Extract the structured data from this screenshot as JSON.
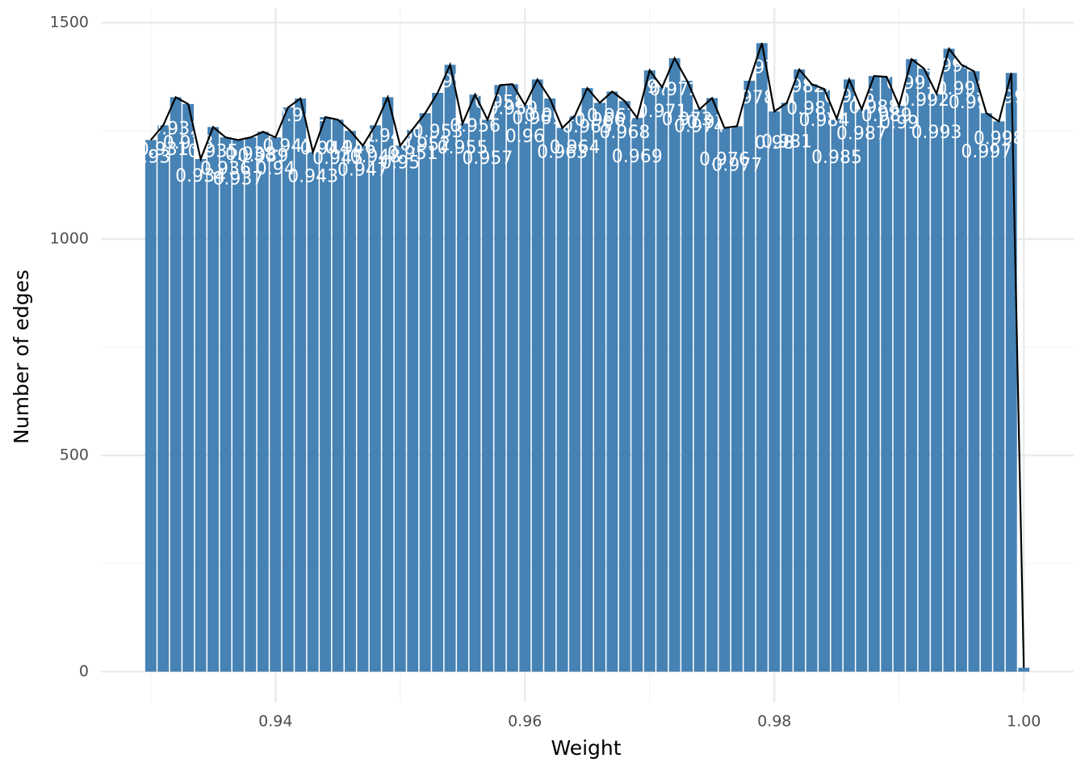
{
  "chart_data": {
    "type": "bar",
    "x_label": "Weight",
    "y_label": "Number of edges",
    "x": [
      0.93,
      0.931,
      0.932,
      0.933,
      0.934,
      0.935,
      0.936,
      0.937,
      0.938,
      0.939,
      0.94,
      0.941,
      0.942,
      0.943,
      0.944,
      0.945,
      0.946,
      0.947,
      0.948,
      0.949,
      0.95,
      0.951,
      0.952,
      0.953,
      0.954,
      0.955,
      0.956,
      0.957,
      0.958,
      0.959,
      0.96,
      0.961,
      0.962,
      0.963,
      0.964,
      0.965,
      0.966,
      0.967,
      0.968,
      0.969,
      0.97,
      0.971,
      0.972,
      0.973,
      0.974,
      0.975,
      0.976,
      0.977,
      0.978,
      0.979,
      0.98,
      0.981,
      0.982,
      0.983,
      0.984,
      0.985,
      0.986,
      0.987,
      0.988,
      0.989,
      0.99,
      0.991,
      0.992,
      0.993,
      0.994,
      0.995,
      0.996,
      0.997,
      0.998,
      0.999,
      1
    ],
    "values": [
      1229,
      1263,
      1328,
      1312,
      1185,
      1259,
      1235,
      1229,
      1235,
      1248,
      1235,
      1304,
      1325,
      1201,
      1282,
      1276,
      1250,
      1216,
      1263,
      1328,
      1216,
      1254,
      1291,
      1338,
      1403,
      1267,
      1334,
      1276,
      1356,
      1358,
      1310,
      1369,
      1325,
      1257,
      1285,
      1349,
      1315,
      1341,
      1319,
      1280,
      1390,
      1351,
      1418,
      1366,
      1300,
      1326,
      1257,
      1261,
      1366,
      1453,
      1295,
      1315,
      1392,
      1358,
      1347,
      1278,
      1369,
      1300,
      1377,
      1375,
      1308,
      1416,
      1394,
      1336,
      1440,
      1403,
      1388,
      1291,
      1272,
      1384,
      9
    ],
    "color": "#4682b4",
    "line_color": "#000000",
    "label_color": "#ffffff",
    "xlim": [
      0.926,
      1.004
    ],
    "ylim": [
      -71,
      1534
    ],
    "xticks": [
      0.94,
      0.96,
      0.98,
      {
        "value": 1,
        "label": "1.00"
      }
    ],
    "yticks": [
      0,
      500,
      1000,
      1500
    ],
    "xticks_minor": [
      0.93,
      0.95,
      0.97,
      0.99
    ],
    "yticks_minor": [
      250,
      750,
      1250
    ],
    "grid": true
  }
}
